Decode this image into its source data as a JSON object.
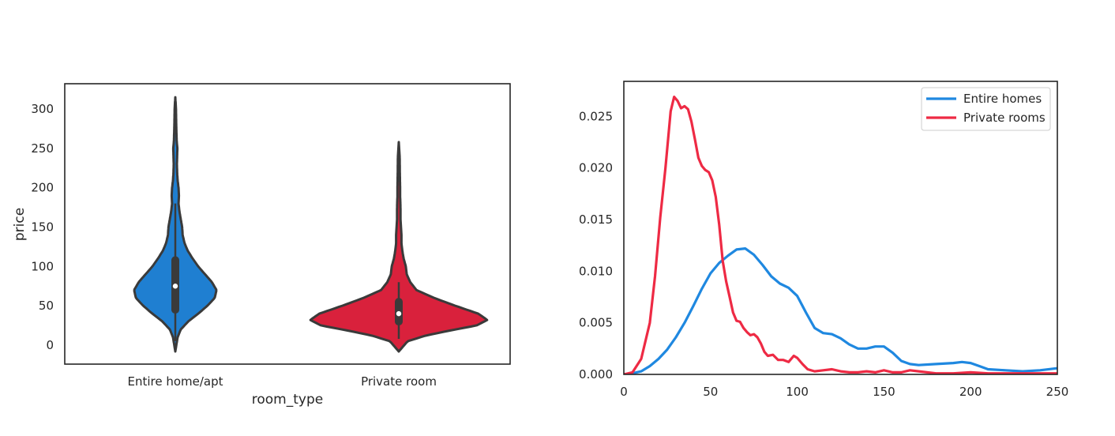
{
  "chart_data": [
    {
      "type": "violin",
      "xlabel": "room_type",
      "ylabel": "price",
      "ylim": [
        -25,
        335
      ],
      "yticks": [
        0,
        50,
        100,
        150,
        200,
        250,
        300
      ],
      "ytick_labels": [
        "0",
        "50",
        "100",
        "150",
        "200",
        "250",
        "300"
      ],
      "grid": false,
      "categories": [
        "Entire home/apt",
        "Private room"
      ],
      "series": [
        {
          "category": "Entire home/apt",
          "color": "#1f7fd1",
          "min": -8,
          "max": 315,
          "q1": 45,
          "median": 75,
          "q3": 108,
          "whisker_low": 5,
          "whisker_high": 180,
          "density_profile": [
            [
              -8,
              0.0
            ],
            [
              10,
              0.05
            ],
            [
              20,
              0.12
            ],
            [
              30,
              0.28
            ],
            [
              40,
              0.5
            ],
            [
              50,
              0.7
            ],
            [
              60,
              0.86
            ],
            [
              70,
              0.9
            ],
            [
              80,
              0.8
            ],
            [
              90,
              0.65
            ],
            [
              100,
              0.5
            ],
            [
              110,
              0.38
            ],
            [
              120,
              0.27
            ],
            [
              130,
              0.2
            ],
            [
              140,
              0.16
            ],
            [
              150,
              0.15
            ],
            [
              160,
              0.12
            ],
            [
              170,
              0.09
            ],
            [
              180,
              0.07
            ],
            [
              190,
              0.08
            ],
            [
              200,
              0.07
            ],
            [
              210,
              0.05
            ],
            [
              220,
              0.04
            ],
            [
              230,
              0.035
            ],
            [
              240,
              0.04
            ],
            [
              250,
              0.045
            ],
            [
              260,
              0.03
            ],
            [
              280,
              0.02
            ],
            [
              300,
              0.015
            ],
            [
              315,
              0.0
            ]
          ]
        },
        {
          "category": "Private room",
          "color": "#d9213c",
          "min": -8,
          "max": 258,
          "q1": 30,
          "median": 40,
          "q3": 55,
          "whisker_low": 8,
          "whisker_high": 80,
          "density_profile": [
            [
              -8,
              0.0
            ],
            [
              5,
              0.1
            ],
            [
              12,
              0.3
            ],
            [
              18,
              0.55
            ],
            [
              25,
              0.88
            ],
            [
              32,
              1.0
            ],
            [
              40,
              0.9
            ],
            [
              50,
              0.64
            ],
            [
              60,
              0.4
            ],
            [
              70,
              0.2
            ],
            [
              80,
              0.13
            ],
            [
              90,
              0.09
            ],
            [
              100,
              0.08
            ],
            [
              110,
              0.055
            ],
            [
              120,
              0.04
            ],
            [
              130,
              0.03
            ],
            [
              140,
              0.03
            ],
            [
              150,
              0.025
            ],
            [
              160,
              0.02
            ],
            [
              170,
              0.02
            ],
            [
              180,
              0.018
            ],
            [
              190,
              0.015
            ],
            [
              200,
              0.015
            ],
            [
              220,
              0.012
            ],
            [
              240,
              0.01
            ],
            [
              258,
              0.0
            ]
          ]
        }
      ]
    },
    {
      "type": "line",
      "xlim": [
        0,
        250
      ],
      "ylim": [
        0,
        0.0284
      ],
      "xticks": [
        0,
        50,
        100,
        150,
        200,
        250
      ],
      "xtick_labels": [
        "0",
        "50",
        "100",
        "150",
        "200",
        "250"
      ],
      "yticks": [
        0,
        0.005,
        0.01,
        0.015,
        0.02,
        0.025
      ],
      "ytick_labels": [
        "0.000",
        "0.005",
        "0.010",
        "0.015",
        "0.020",
        "0.025"
      ],
      "grid": false,
      "legend_position": "top-right",
      "series": [
        {
          "name": "Entire homes",
          "color": "#1f88e0",
          "points": [
            [
              0,
              0.0
            ],
            [
              5,
              0.0001
            ],
            [
              10,
              0.0003
            ],
            [
              15,
              0.0008
            ],
            [
              20,
              0.0015
            ],
            [
              25,
              0.0024
            ],
            [
              30,
              0.0036
            ],
            [
              35,
              0.005
            ],
            [
              40,
              0.0066
            ],
            [
              45,
              0.0083
            ],
            [
              50,
              0.0098
            ],
            [
              55,
              0.0108
            ],
            [
              60,
              0.0115
            ],
            [
              65,
              0.0121
            ],
            [
              70,
              0.0122
            ],
            [
              75,
              0.0116
            ],
            [
              80,
              0.0106
            ],
            [
              85,
              0.0095
            ],
            [
              90,
              0.0088
            ],
            [
              95,
              0.0084
            ],
            [
              100,
              0.0076
            ],
            [
              105,
              0.006
            ],
            [
              110,
              0.0045
            ],
            [
              115,
              0.004
            ],
            [
              120,
              0.0039
            ],
            [
              125,
              0.0035
            ],
            [
              130,
              0.0029
            ],
            [
              135,
              0.0025
            ],
            [
              140,
              0.0025
            ],
            [
              145,
              0.0027
            ],
            [
              150,
              0.0027
            ],
            [
              155,
              0.0021
            ],
            [
              160,
              0.0013
            ],
            [
              165,
              0.001
            ],
            [
              170,
              0.0009
            ],
            [
              180,
              0.001
            ],
            [
              190,
              0.0011
            ],
            [
              195,
              0.0012
            ],
            [
              200,
              0.0011
            ],
            [
              205,
              0.0008
            ],
            [
              210,
              0.0005
            ],
            [
              220,
              0.0004
            ],
            [
              230,
              0.0003
            ],
            [
              240,
              0.0004
            ],
            [
              250,
              0.0006
            ]
          ]
        },
        {
          "name": "Private rooms",
          "color": "#ee2a44",
          "points": [
            [
              0,
              0.0
            ],
            [
              5,
              0.0002
            ],
            [
              10,
              0.0015
            ],
            [
              15,
              0.005
            ],
            [
              18,
              0.0095
            ],
            [
              21,
              0.0152
            ],
            [
              24,
              0.02
            ],
            [
              27,
              0.0255
            ],
            [
              29,
              0.0269
            ],
            [
              31,
              0.0265
            ],
            [
              33,
              0.0258
            ],
            [
              35,
              0.026
            ],
            [
              37,
              0.0257
            ],
            [
              39,
              0.0245
            ],
            [
              41,
              0.0228
            ],
            [
              43,
              0.021
            ],
            [
              45,
              0.0202
            ],
            [
              47,
              0.0198
            ],
            [
              49,
              0.0196
            ],
            [
              51,
              0.0188
            ],
            [
              53,
              0.0172
            ],
            [
              55,
              0.0145
            ],
            [
              57,
              0.011
            ],
            [
              59,
              0.009
            ],
            [
              61,
              0.0075
            ],
            [
              63,
              0.006
            ],
            [
              65,
              0.0052
            ],
            [
              67,
              0.0051
            ],
            [
              69,
              0.0045
            ],
            [
              71,
              0.0041
            ],
            [
              73,
              0.0038
            ],
            [
              75,
              0.0039
            ],
            [
              77,
              0.0036
            ],
            [
              79,
              0.003
            ],
            [
              81,
              0.0022
            ],
            [
              83,
              0.0018
            ],
            [
              86,
              0.0019
            ],
            [
              89,
              0.0014
            ],
            [
              92,
              0.0014
            ],
            [
              95,
              0.0012
            ],
            [
              98,
              0.0018
            ],
            [
              100,
              0.0016
            ],
            [
              103,
              0.001
            ],
            [
              106,
              0.0005
            ],
            [
              110,
              0.0003
            ],
            [
              115,
              0.0004
            ],
            [
              120,
              0.0005
            ],
            [
              125,
              0.0003
            ],
            [
              130,
              0.0002
            ],
            [
              135,
              0.0002
            ],
            [
              140,
              0.0003
            ],
            [
              145,
              0.0002
            ],
            [
              150,
              0.0004
            ],
            [
              155,
              0.0002
            ],
            [
              160,
              0.0002
            ],
            [
              165,
              0.0004
            ],
            [
              170,
              0.0003
            ],
            [
              180,
              0.0001
            ],
            [
              190,
              0.0001
            ],
            [
              200,
              0.0002
            ],
            [
              210,
              0.0001
            ],
            [
              220,
              0.0001
            ],
            [
              230,
              0.0001
            ],
            [
              240,
              0.0001
            ],
            [
              250,
              0.0001
            ]
          ]
        }
      ]
    }
  ]
}
